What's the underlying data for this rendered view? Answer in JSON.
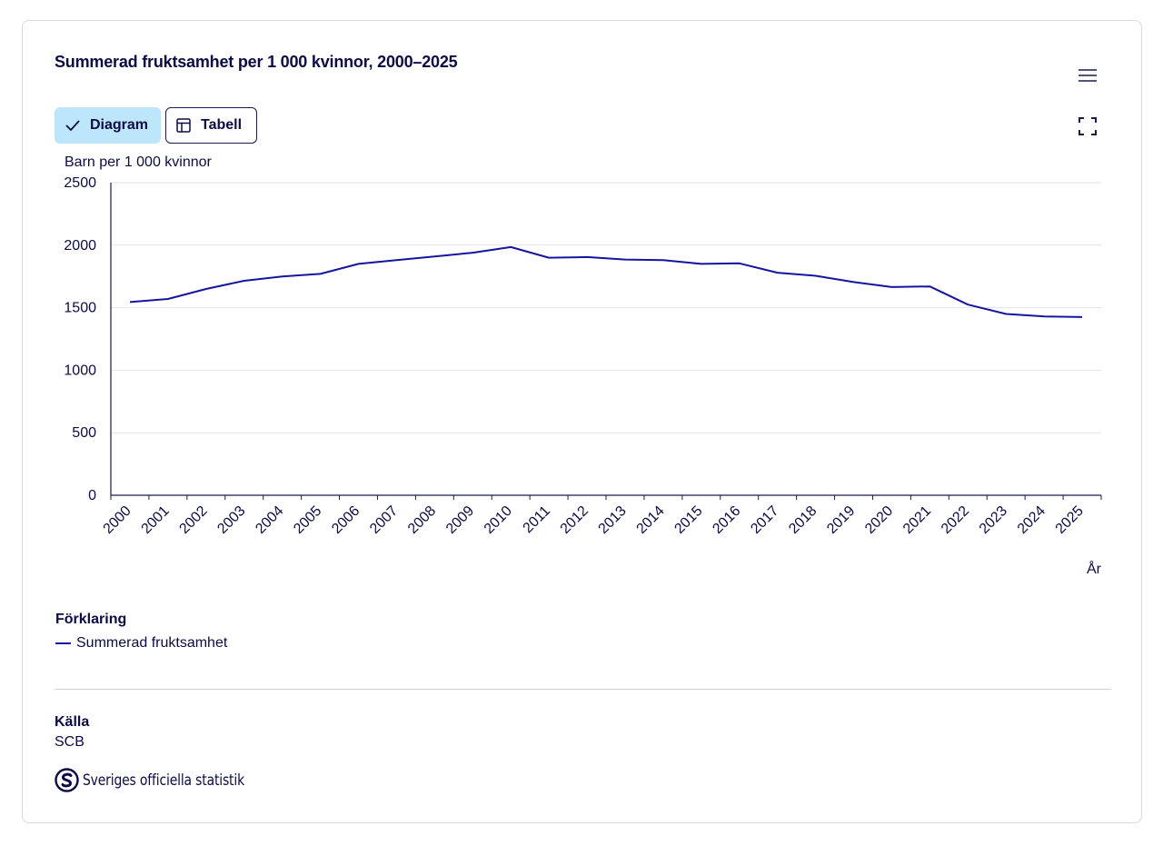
{
  "title": "Summerad fruktsamhet per 1 000 kvinnor, 2000–2025",
  "view_toggle": {
    "diagram_label": "Diagram",
    "table_label": "Tabell"
  },
  "icons": {
    "menu": "hamburger-menu-icon",
    "fullscreen": "fullscreen-icon",
    "check": "check-icon",
    "table": "table-icon"
  },
  "colors": {
    "line": "#1515a0",
    "text": "#0b0b45",
    "active_toggle": "#bde6fb",
    "grid": "#e3e3e8"
  },
  "chart_data": {
    "type": "line",
    "title": "Summerad fruktsamhet per 1 000 kvinnor, 2000–2025",
    "ylabel": "Barn per 1 000 kvinnor",
    "xlabel": "År",
    "ylim": [
      0,
      2500
    ],
    "yticks": [
      "0",
      "500",
      "1000",
      "1500",
      "2000",
      "2500"
    ],
    "grid": true,
    "categories": [
      "2000",
      "2001",
      "2002",
      "2003",
      "2004",
      "2005",
      "2006",
      "2007",
      "2008",
      "2009",
      "2010",
      "2011",
      "2012",
      "2013",
      "2014",
      "2015",
      "2016",
      "2017",
      "2018",
      "2019",
      "2020",
      "2021",
      "2022",
      "2023",
      "2024",
      "2025"
    ],
    "series": [
      {
        "name": "Summerad fruktsamhet",
        "values": [
          1545,
          1570,
          1650,
          1715,
          1750,
          1770,
          1850,
          1880,
          1910,
          1940,
          1985,
          1900,
          1905,
          1885,
          1880,
          1850,
          1855,
          1780,
          1755,
          1705,
          1665,
          1670,
          1525,
          1450,
          1430,
          1425
        ]
      }
    ]
  },
  "legend": {
    "heading": "Förklaring",
    "items": [
      "Summerad fruktsamhet"
    ]
  },
  "source": {
    "heading": "Källa",
    "value": "SCB"
  },
  "logo": {
    "text": "Sveriges officiella statistik"
  }
}
